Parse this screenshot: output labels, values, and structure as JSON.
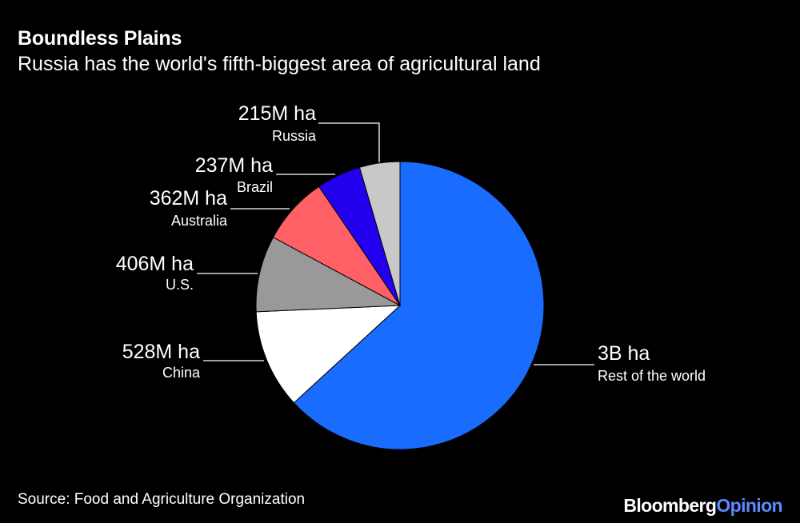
{
  "header": {
    "title": "Boundless Plains",
    "subtitle": "Russia has the world's fifth-biggest area of agricultural land"
  },
  "footer": {
    "source": "Source: Food and Agriculture Organization",
    "brand_main": "Bloomberg",
    "brand_accent": "Opinion"
  },
  "chart_data": {
    "type": "pie",
    "unit": "ha",
    "slices": [
      {
        "name": "Rest of the world",
        "value": 3000000000,
        "label": "3B ha",
        "color": "#1a6cff"
      },
      {
        "name": "China",
        "value": 528000000,
        "label": "528M ha",
        "color": "#ffffff"
      },
      {
        "name": "U.S.",
        "value": 406000000,
        "label": "406M ha",
        "color": "#999999"
      },
      {
        "name": "Australia",
        "value": 362000000,
        "label": "362M ha",
        "color": "#ff6066"
      },
      {
        "name": "Brazil",
        "value": 237000000,
        "label": "237M ha",
        "color": "#2200ee"
      },
      {
        "name": "Russia",
        "value": 215000000,
        "label": "215M ha",
        "color": "#c8c8c8"
      }
    ]
  }
}
